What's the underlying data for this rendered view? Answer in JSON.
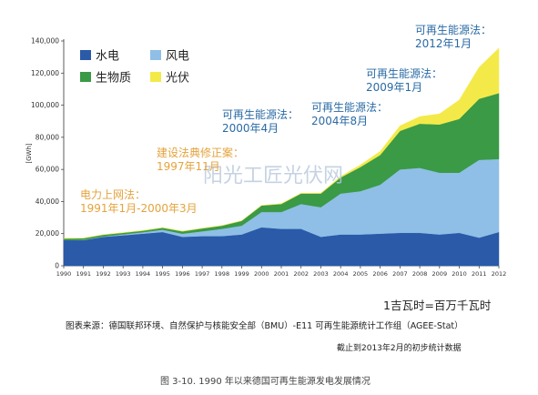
{
  "chart_data": {
    "type": "area",
    "stacked": true,
    "x": [
      "1990",
      "1991",
      "1992",
      "1993",
      "1994",
      "1995",
      "1996",
      "1997",
      "1998",
      "1999",
      "2000",
      "2001",
      "2002",
      "2003",
      "2004",
      "2005",
      "2006",
      "2007",
      "2008",
      "2009",
      "2010",
      "2011",
      "2012"
    ],
    "series": [
      {
        "name": "水电",
        "color": "#2a5aa8",
        "values": [
          16000,
          16000,
          18000,
          19000,
          20000,
          21000,
          18000,
          18500,
          18500,
          19500,
          24000,
          23000,
          23000,
          18000,
          19500,
          19500,
          20000,
          20500,
          20500,
          19500,
          20500,
          17500,
          21000
        ]
      },
      {
        "name": "风电",
        "color": "#8fbfe6",
        "values": [
          0,
          200,
          300,
          600,
          900,
          1500,
          2000,
          3000,
          4500,
          5500,
          9500,
          10500,
          15500,
          18500,
          25500,
          27000,
          30500,
          39500,
          40500,
          38500,
          37500,
          48500,
          45500
        ]
      },
      {
        "name": "生物质",
        "color": "#3a9a46",
        "values": [
          1000,
          1000,
          1000,
          1000,
          1000,
          1200,
          1500,
          1800,
          2000,
          3000,
          4000,
          5000,
          6500,
          8500,
          10000,
          15000,
          18500,
          24000,
          27500,
          30000,
          33500,
          38000,
          41000
        ]
      },
      {
        "name": "光伏",
        "color": "#f3ea4a",
        "values": [
          0,
          0,
          0,
          0,
          0,
          0,
          0,
          0,
          0,
          0,
          100,
          200,
          200,
          300,
          600,
          1300,
          2200,
          3100,
          4400,
          6600,
          11700,
          19600,
          28000
        ]
      }
    ],
    "ylabel": "[GWh]",
    "ylim": [
      0,
      140000
    ],
    "yticks": [
      "0",
      "20,000",
      "40,000",
      "60,000",
      "80,000",
      "100,000",
      "120,000",
      "140,000"
    ],
    "legend": {
      "position": "top-left"
    },
    "annotations": [
      {
        "lines": [
          "电力上网法：",
          "1991年1月-2000年3月"
        ],
        "color": "#e4a33c"
      },
      {
        "lines": [
          "建设法典修正案：",
          "1997年11月"
        ],
        "color": "#e4a33c"
      },
      {
        "lines": [
          "可再生能源法：",
          "2000年4月"
        ],
        "color": "#2a6aa5"
      },
      {
        "lines": [
          "可再生能源法：",
          "2004年8月"
        ],
        "color": "#2a6aa5"
      },
      {
        "lines": [
          "可再生能源法：",
          "2009年1月"
        ],
        "color": "#2a6aa5"
      },
      {
        "lines": [
          "可再生能源法：",
          "2012年1月"
        ],
        "color": "#2a6aa5"
      }
    ],
    "watermark": "阳光工匠光伏网"
  },
  "notes": {
    "unit": "1吉瓦时=百万千瓦时",
    "source": "图表来源：德国联邦环境、自然保护与核能安全部（BMU）-E11 可再生能源统计工作组（AGEE-Stat）",
    "date": "截止到2013年2月的初步统计数据",
    "caption": "图 3-10. 1990 年以来德国可再生能源发电发展情况"
  }
}
